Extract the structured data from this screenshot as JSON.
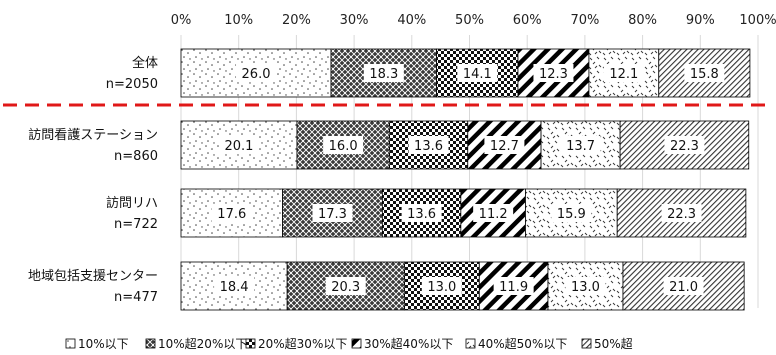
{
  "chart_data": {
    "type": "bar",
    "orientation": "horizontal",
    "stacked": true,
    "percent_stacked": true,
    "xlim": [
      0,
      100
    ],
    "x_ticks": [
      "0%",
      "10%",
      "20%",
      "30%",
      "40%",
      "50%",
      "60%",
      "70%",
      "80%",
      "90%",
      "100%"
    ],
    "x_axis_position": "top",
    "grid": true,
    "legend_position": "bottom",
    "categories": [
      {
        "name": "全体",
        "n_label": "n=2050"
      },
      {
        "name": "訪問看護ステーション",
        "n_label": "n=860"
      },
      {
        "name": "訪問リハ",
        "n_label": "n=722"
      },
      {
        "name": "地域包括支援センター",
        "n_label": "n=477"
      }
    ],
    "series": [
      {
        "name": "10%以下",
        "pattern": "dots",
        "values": [
          26.0,
          20.1,
          17.6,
          18.4
        ]
      },
      {
        "name": "10%超20%以下",
        "pattern": "dense-crosshatch",
        "values": [
          18.3,
          16.0,
          17.3,
          20.3
        ]
      },
      {
        "name": "20%超30%以下",
        "pattern": "checker",
        "values": [
          14.1,
          13.6,
          13.6,
          13.0
        ]
      },
      {
        "name": "30%超40%以下",
        "pattern": "wide-diagonal",
        "values": [
          12.3,
          12.7,
          11.2,
          11.9
        ]
      },
      {
        "name": "40%超50%以下",
        "pattern": "sparse-confetti",
        "values": [
          12.1,
          13.7,
          15.9,
          13.0
        ]
      },
      {
        "name": "50%超",
        "pattern": "fine-diagonal",
        "values": [
          15.8,
          22.3,
          22.3,
          21.0
        ]
      }
    ],
    "separator": {
      "style": "dashed",
      "color": "#e01818",
      "after_category_index": 0
    }
  }
}
